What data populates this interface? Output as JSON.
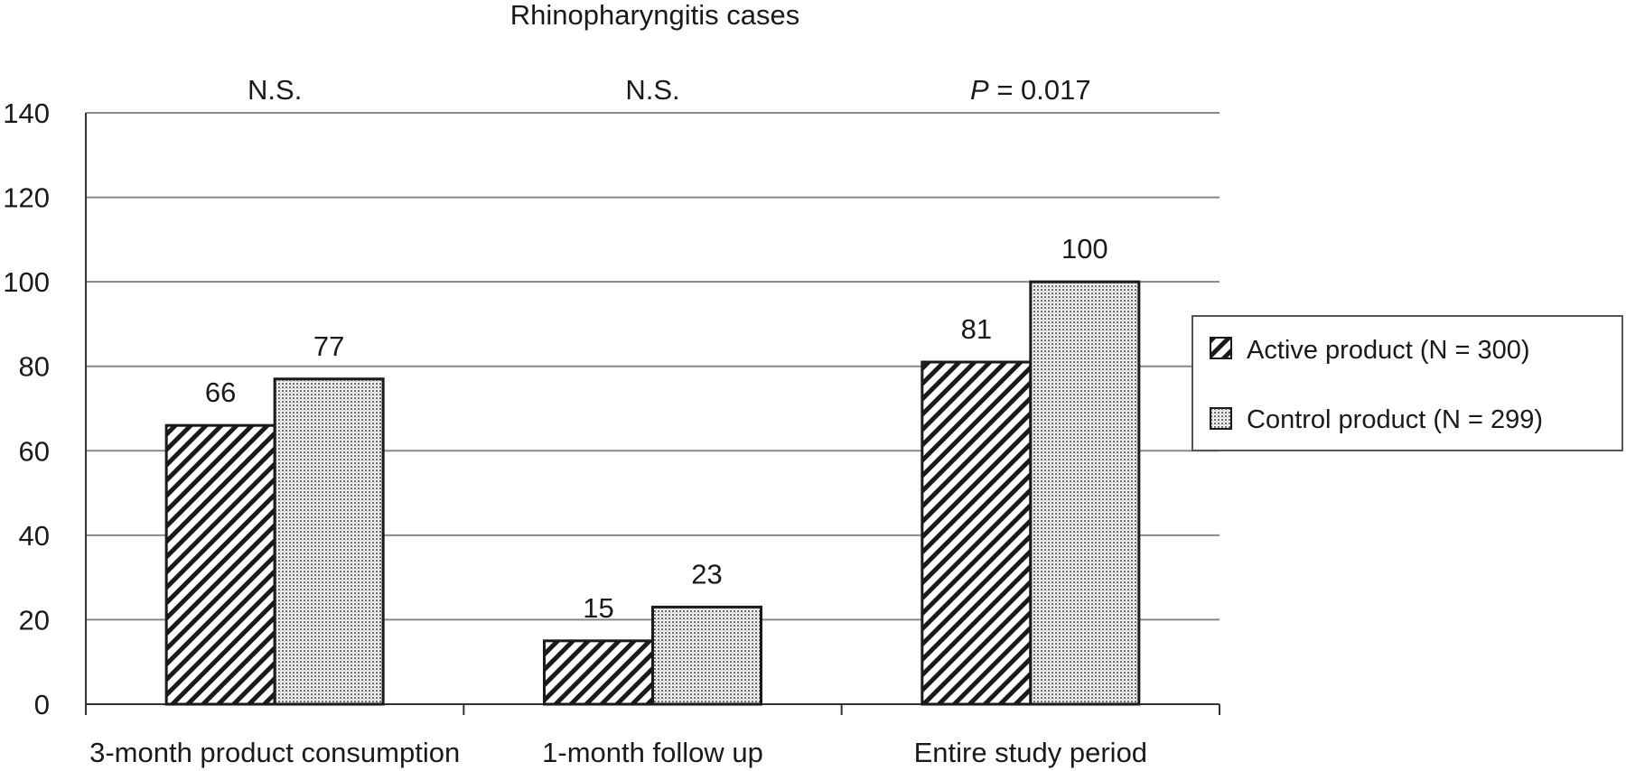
{
  "chart_data": {
    "type": "bar",
    "title": "Rhinopharyngitis cases",
    "categories": [
      "3-month product consumption",
      "1-month follow up",
      "Entire study period"
    ],
    "series": [
      {
        "name": "Active product (N = 300)",
        "values": [
          66,
          15,
          81
        ],
        "pattern": "diagonal-hatch"
      },
      {
        "name": "Control product (N = 299)",
        "values": [
          77,
          23,
          100
        ],
        "pattern": "dotted"
      }
    ],
    "data_labels": [
      [
        "66",
        "15",
        "81"
      ],
      [
        "77",
        "23",
        "100"
      ]
    ],
    "annotations": [
      {
        "category": "3-month product consumption",
        "prefix": "",
        "text": "N.S."
      },
      {
        "category": "1-month follow up",
        "prefix": "",
        "text": "N.S."
      },
      {
        "category": "Entire study period",
        "prefix": "P",
        "text": " = 0.017"
      }
    ],
    "ylim": [
      0,
      140
    ],
    "yticks": [
      0,
      20,
      40,
      60,
      80,
      100,
      120,
      140
    ],
    "ytick_labels": [
      "0",
      "20",
      "40",
      "60",
      "80",
      "100",
      "120",
      "140"
    ],
    "xlabel": "",
    "ylabel": "",
    "grid": true,
    "legend_position": "right",
    "colors": {
      "bar_stroke": "#1a1a1a",
      "bar_fill": "#ffffff",
      "grid": "#888888",
      "dots": "#6a6a6a"
    }
  }
}
